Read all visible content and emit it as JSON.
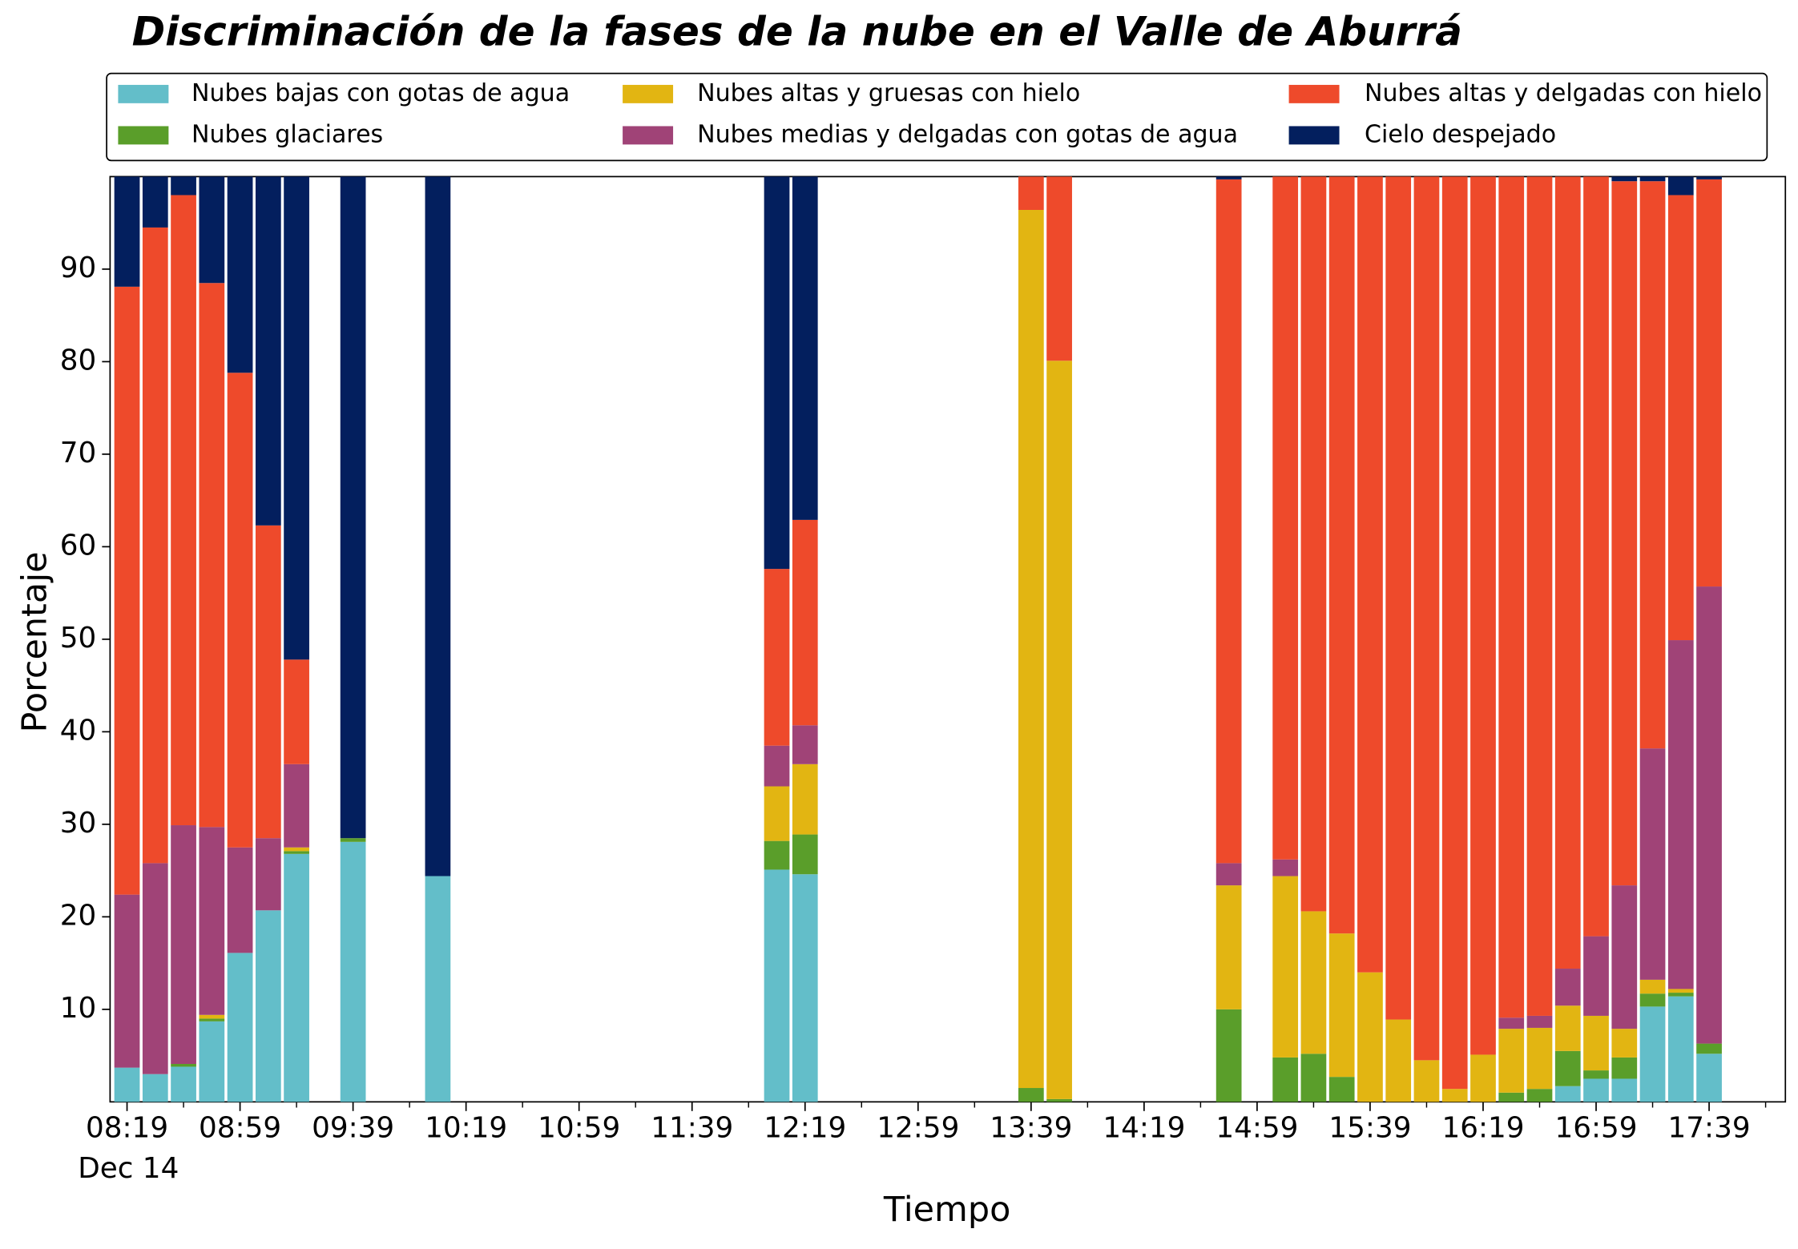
{
  "chart_data": {
    "type": "stacked_bar",
    "title": "Discriminación de la fases de la nube en el Valle de Aburrá",
    "xlabel": "Tiempo",
    "ylabel": "Porcentaje",
    "x_date_label": "Dec 14",
    "x": [
      "08:19",
      "08:29",
      "08:39",
      "08:49",
      "08:59",
      "09:09",
      "09:19",
      "09:39",
      "10:09",
      "12:09",
      "12:19",
      "13:39",
      "13:49",
      "14:49",
      "15:09",
      "15:19",
      "15:29",
      "15:39",
      "15:49",
      "15:59",
      "16:09",
      "16:19",
      "16:29",
      "16:39",
      "16:49",
      "16:59",
      "17:09",
      "17:19",
      "17:29",
      "17:39"
    ],
    "series": [
      {
        "name": "Nubes bajas con gotas de agua",
        "color": "#63bec9",
        "values": [
          3.7,
          3.0,
          3.8,
          8.7,
          16.1,
          20.7,
          26.8,
          28.1,
          24.4,
          25.1,
          24.6,
          0,
          0,
          0,
          0,
          0,
          0,
          0,
          0,
          0,
          0,
          0,
          0,
          0,
          1.7,
          2.5,
          2.5,
          10.3,
          11.4,
          5.2
        ]
      },
      {
        "name": "Nubes glaciares",
        "color": "#5a9e2a",
        "values": [
          0,
          0,
          0.3,
          0.3,
          0,
          0,
          0.3,
          0.4,
          0,
          3.1,
          4.3,
          1.5,
          0.3,
          10.0,
          4.8,
          5.2,
          2.7,
          0,
          0,
          0,
          0,
          0,
          1.0,
          1.4,
          3.8,
          0.9,
          2.3,
          1.4,
          0.4,
          1.1
        ]
      },
      {
        "name": "Nubes altas y gruesas con hielo",
        "color": "#e2b512",
        "values": [
          0,
          0,
          0,
          0.4,
          0,
          0,
          0.4,
          0,
          0,
          5.9,
          7.6,
          94.9,
          79.8,
          13.4,
          19.6,
          15.4,
          15.5,
          14.0,
          8.9,
          4.5,
          1.4,
          5.1,
          6.9,
          6.6,
          4.9,
          5.9,
          3.1,
          1.5,
          0.4,
          0
        ]
      },
      {
        "name": "Nubes medias y delgadas con gotas de agua",
        "color": "#a04377",
        "values": [
          18.7,
          22.8,
          25.8,
          20.3,
          11.4,
          7.8,
          9.0,
          0,
          0,
          4.4,
          4.2,
          0,
          0,
          2.4,
          1.8,
          0,
          0,
          0,
          0,
          0,
          0,
          0,
          1.2,
          1.3,
          4.0,
          8.6,
          15.5,
          25.0,
          37.7,
          49.4
        ]
      },
      {
        "name": "Nubes altas y delgadas con hielo",
        "color": "#ee4a2b",
        "values": [
          65.7,
          68.7,
          68.1,
          58.8,
          51.3,
          33.8,
          11.3,
          0,
          0,
          19.1,
          22.2,
          3.6,
          19.9,
          73.9,
          73.8,
          79.4,
          81.8,
          86.0,
          91.1,
          95.5,
          98.6,
          94.9,
          90.9,
          90.7,
          85.6,
          82.1,
          76.1,
          61.3,
          48.1,
          44.0
        ]
      },
      {
        "name": "Cielo despejado",
        "color": "#031f5e",
        "values": [
          11.9,
          5.5,
          2.0,
          11.5,
          21.2,
          37.7,
          52.2,
          71.5,
          75.6,
          42.4,
          37.1,
          0,
          0,
          0.3,
          0,
          0,
          0,
          0,
          0,
          0,
          0,
          0,
          0,
          0,
          0,
          0,
          0.5,
          0.5,
          2.0,
          0.3
        ]
      }
    ],
    "xlim": [
      "08:13",
      "18:06"
    ],
    "xticks": [
      "08:19",
      "08:59",
      "09:39",
      "10:19",
      "10:59",
      "11:39",
      "12:19",
      "12:59",
      "13:39",
      "14:19",
      "14:59",
      "15:39",
      "16:19",
      "16:59",
      "17:39"
    ],
    "xminorticks": [
      "08:39",
      "09:19",
      "09:59",
      "10:39",
      "11:19",
      "11:59",
      "12:39",
      "13:19",
      "13:59",
      "14:39",
      "15:19",
      "15:59",
      "16:39",
      "17:19",
      "17:59"
    ],
    "ylim": [
      0,
      100
    ],
    "yticks": [
      10,
      20,
      30,
      40,
      50,
      60,
      70,
      80,
      90
    ],
    "legend": "top"
  }
}
